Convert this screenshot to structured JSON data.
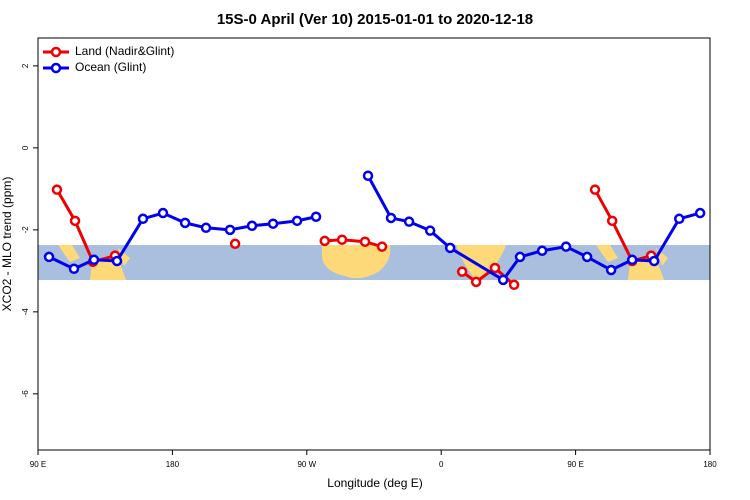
{
  "chart_data": {
    "type": "line",
    "title": "15S-0 April (Ver 10)   2015-01-01 to 2020-12-18",
    "x_label": "Longitude (deg E)",
    "y_label": "XCO2 - MLO trend (ppm)",
    "xlim": [
      90,
      540
    ],
    "ylim": [
      -7.37,
      2.68
    ],
    "xticks": [
      {
        "value": 90,
        "label": "90 E"
      },
      {
        "value": 180,
        "label": "180"
      },
      {
        "value": 270,
        "label": "90 W"
      },
      {
        "value": 360,
        "label": "0"
      },
      {
        "value": 450,
        "label": "90 E"
      },
      {
        "value": 540,
        "label": "180"
      }
    ],
    "yticks": [
      -6,
      -4,
      -2,
      0,
      2
    ],
    "legend": "top-left",
    "series": [
      {
        "name": "Land (Nadir&Glint)",
        "color": "#ee0000",
        "x": [
          102.7,
          114.8,
          126.8,
          141.6,
          null,
          222,
          null,
          282,
          293.6,
          309,
          320.4,
          null,
          374,
          383.4,
          396,
          408.8,
          null,
          463,
          474.5,
          487.9,
          500.6
        ],
        "values": [
          -1.02,
          -1.78,
          -2.78,
          -2.63,
          null,
          -2.34,
          null,
          -2.27,
          -2.24,
          -2.29,
          -2.41,
          null,
          -3.02,
          -3.27,
          -2.93,
          -3.34,
          null,
          -1.02,
          -1.78,
          -2.76,
          -2.63
        ]
      },
      {
        "name": "Ocean (Glint)",
        "color": "#0000ee",
        "x": [
          97.4,
          114.1,
          127.5,
          142.9,
          160.3,
          173.7,
          188.5,
          202.5,
          218.6,
          233.3,
          247.4,
          263.5,
          276.2,
          null,
          311,
          326.4,
          338.5,
          352.6,
          366,
          401.5,
          412.8,
          427.6,
          443.6,
          457.7,
          473.8,
          487.9,
          502.6,
          519.4,
          533.4
        ],
        "values": [
          -2.66,
          -2.95,
          -2.73,
          -2.76,
          -1.73,
          -1.59,
          -1.83,
          -1.95,
          -2.0,
          -1.9,
          -1.85,
          -1.78,
          -1.68,
          null,
          -0.68,
          -1.71,
          -1.8,
          -2.02,
          -2.44,
          -3.22,
          -2.66,
          -2.51,
          -2.41,
          -2.66,
          -2.98,
          -2.73,
          -2.76,
          -1.73,
          -1.59
        ]
      }
    ]
  }
}
